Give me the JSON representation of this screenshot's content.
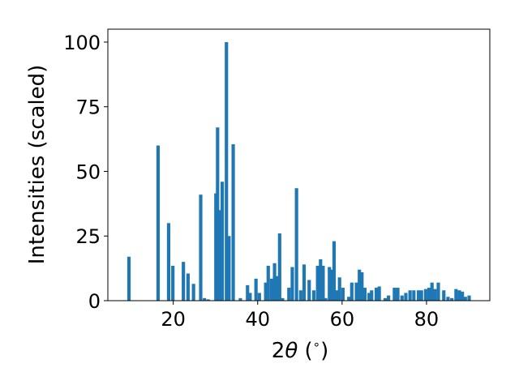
{
  "chart_data": {
    "type": "bar",
    "xlabel_parts": [
      "2",
      "θ",
      " (",
      "∘",
      ")"
    ],
    "ylabel": "Intensities (scaled)",
    "xlim": [
      4.5,
      95
    ],
    "ylim": [
      0,
      105
    ],
    "xticks": [
      20,
      40,
      60,
      80
    ],
    "yticks": [
      0,
      25,
      50,
      75,
      100
    ],
    "bar_width": 0.8,
    "grid": false,
    "color": "#1f77b4",
    "x": [
      9.5,
      16.4,
      18.9,
      19.9,
      22.4,
      23.5,
      24.8,
      26.5,
      27.4,
      28.3,
      30.1,
      30.5,
      31.0,
      31.6,
      32.6,
      33.2,
      34.2,
      35.9,
      37.6,
      38.2,
      39.6,
      40.4,
      41.9,
      42.5,
      43.3,
      44.0,
      44.6,
      45.2,
      45.9,
      47.4,
      48.2,
      49.2,
      50.2,
      51.0,
      52.2,
      53.3,
      54.2,
      54.9,
      55.5,
      56.1,
      57.0,
      57.6,
      58.1,
      58.8,
      59.4,
      60.2,
      61.6,
      62.3,
      63.4,
      64.1,
      64.7,
      65.4,
      66.4,
      67.0,
      68.1,
      68.8,
      70.2,
      71.0,
      72.4,
      73.2,
      74.2,
      75.1,
      76.1,
      77.0,
      78.1,
      78.8,
      79.8,
      80.6,
      81.3,
      82.0,
      82.8,
      84.1,
      85.1,
      86.0,
      87.0,
      87.8,
      88.5,
      89.2,
      90.1
    ],
    "values": [
      17,
      60,
      30,
      13.5,
      15,
      10.5,
      6.5,
      41,
      1,
      0.5,
      41.5,
      67,
      35,
      46,
      100,
      25,
      60.5,
      1,
      6,
      3,
      8.5,
      3,
      7,
      13.5,
      8.5,
      14.5,
      9.5,
      26,
      1,
      5,
      13,
      43.5,
      4,
      14,
      8,
      4,
      13.5,
      16,
      13.5,
      1,
      13,
      12,
      23,
      4,
      9,
      5,
      1.5,
      7,
      7,
      12,
      11,
      5,
      3,
      4,
      5,
      5.5,
      1,
      2,
      5,
      5,
      2,
      3,
      4,
      4,
      4,
      4,
      4.5,
      5,
      7,
      4.5,
      7,
      4,
      1.5,
      1,
      4.5,
      4,
      3.5,
      1.5,
      2
    ]
  }
}
